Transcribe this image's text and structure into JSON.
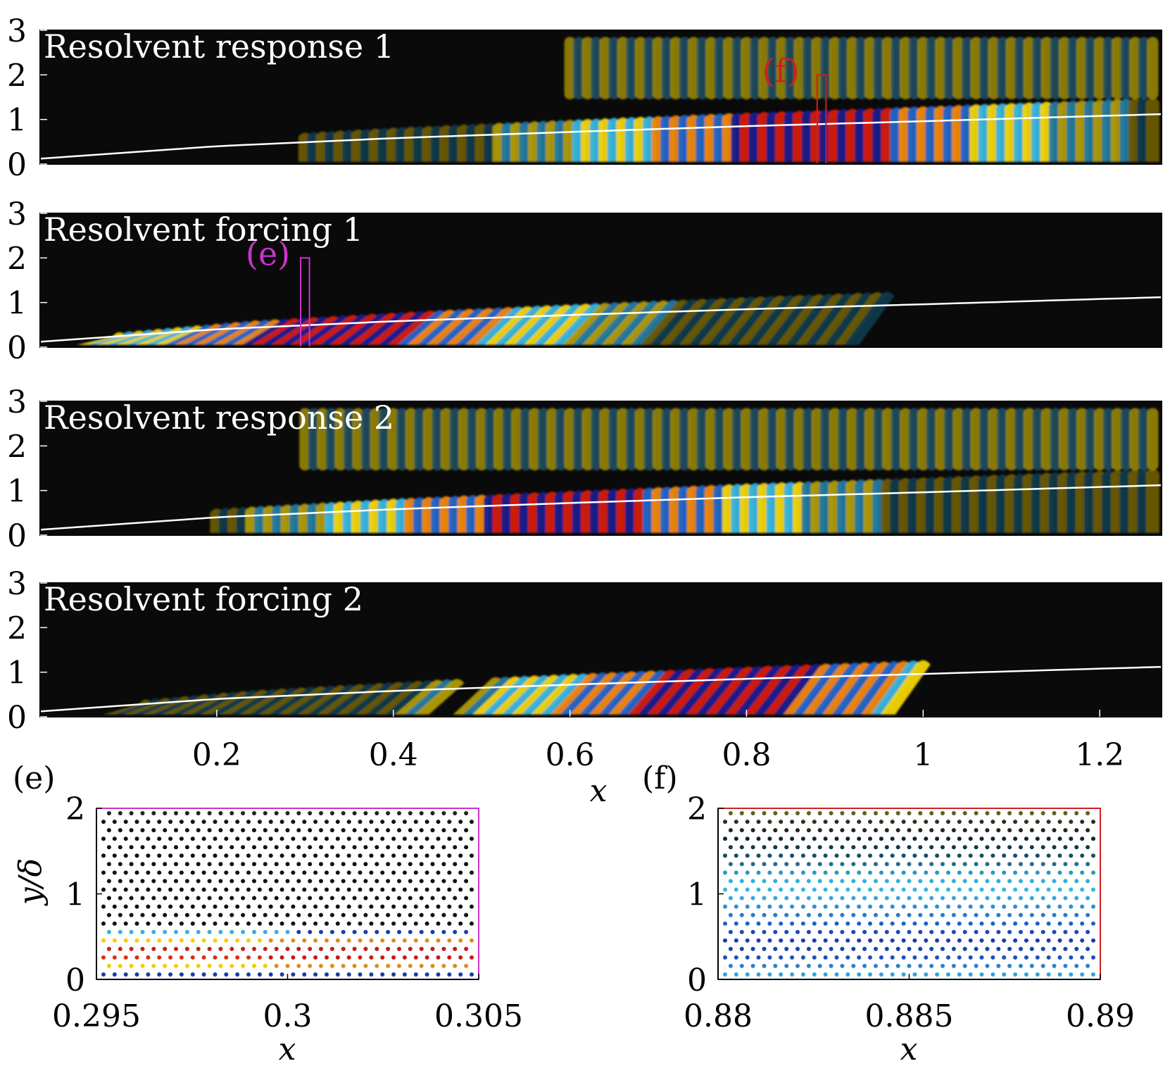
{
  "figure": {
    "colors": {
      "background_panel": "#0a0a0a",
      "wavemap": [
        "#c8a400",
        "#f2d400",
        "#f08800",
        "#d42000",
        "#33b4e0",
        "#1a66c8",
        "#14208c"
      ],
      "bl_curve": "#ffffff",
      "box_e": "#cc33cc",
      "box_f": "#d02020"
    },
    "icons": {
      "wave_field": "contour-field-icon"
    }
  },
  "chart_data": [
    {
      "type": "heatmap",
      "id": "response1",
      "title": "Resolvent response 1",
      "ylim": [
        0,
        3.0
      ],
      "yticks": [
        "0",
        "1",
        "2",
        "3"
      ],
      "xlim": [
        0.0,
        1.27
      ],
      "bl_thickness": {
        "x": [
          0.0,
          0.2,
          0.4,
          0.6,
          0.8,
          1.0,
          1.27
        ],
        "y": [
          0.12,
          0.4,
          0.58,
          0.72,
          0.85,
          0.96,
          1.12
        ]
      },
      "wave": {
        "x_start": 0.3,
        "x_end": 1.27,
        "peak_x": 0.88,
        "wavelength": 0.02,
        "tilt": 0.0,
        "upper_band": true,
        "upper_start": 0.6
      },
      "box": {
        "label": "(f)",
        "x": [
          0.88,
          0.89
        ],
        "y": [
          0,
          2.0
        ]
      }
    },
    {
      "type": "heatmap",
      "id": "forcing1",
      "title": "Resolvent forcing 1",
      "ylim": [
        0,
        3.0
      ],
      "yticks": [
        "0",
        "1",
        "2",
        "3"
      ],
      "xlim": [
        0.0,
        1.27
      ],
      "bl_thickness": {
        "x": [
          0.0,
          0.2,
          0.4,
          0.6,
          0.8,
          1.0,
          1.27
        ],
        "y": [
          0.12,
          0.4,
          0.58,
          0.72,
          0.85,
          0.96,
          1.12
        ]
      },
      "wave": {
        "x_start": 0.05,
        "x_end": 0.93,
        "peak_x": 0.32,
        "wavelength": 0.022,
        "tilt": 0.04,
        "upper_band": false
      },
      "box": {
        "label": "(e)",
        "x": [
          0.295,
          0.305
        ],
        "y": [
          0,
          2.0
        ]
      }
    },
    {
      "type": "heatmap",
      "id": "response2",
      "title": "Resolvent response 2",
      "ylim": [
        0,
        3.0
      ],
      "yticks": [
        "0",
        "1",
        "2",
        "3"
      ],
      "xlim": [
        0.0,
        1.27
      ],
      "bl_thickness": {
        "x": [
          0.0,
          0.2,
          0.4,
          0.6,
          0.8,
          1.0,
          1.27
        ],
        "y": [
          0.12,
          0.4,
          0.58,
          0.72,
          0.85,
          0.96,
          1.12
        ]
      },
      "wave": {
        "x_start": 0.2,
        "x_end": 1.27,
        "peak_x": 0.6,
        "wavelength": 0.02,
        "tilt": 0.0,
        "upper_band": true,
        "upper_start": 0.3
      }
    },
    {
      "type": "heatmap",
      "id": "forcing2",
      "title": "Resolvent forcing 2",
      "ylim": [
        0,
        3.0
      ],
      "yticks": [
        "0",
        "1",
        "2",
        "3"
      ],
      "xlim": [
        0.0,
        1.27
      ],
      "xlabel": "x",
      "xticks": [
        "0.2",
        "0.4",
        "0.6",
        "0.8",
        "1",
        "1.2"
      ],
      "xtick_values": [
        0.2,
        0.4,
        0.6,
        0.8,
        1.0,
        1.2
      ],
      "bl_thickness": {
        "x": [
          0.0,
          0.2,
          0.4,
          0.6,
          0.8,
          1.0,
          1.27
        ],
        "y": [
          0.12,
          0.4,
          0.58,
          0.72,
          0.85,
          0.96,
          1.12
        ]
      },
      "wave": {
        "x_start": 0.08,
        "x_end": 0.97,
        "peak_x": 0.76,
        "wavelength": 0.022,
        "tilt": 0.04,
        "upper_band": false,
        "gap": [
          0.44,
          0.47
        ]
      }
    },
    {
      "type": "scatter",
      "id": "zoom_e",
      "panel_label": "(e)",
      "xlabel": "x",
      "ylabel": "y/δ",
      "xlim": [
        0.295,
        0.305
      ],
      "ylim": [
        0,
        2
      ],
      "xticks": [
        "0.295",
        "0.3",
        "0.305"
      ],
      "xtick_values": [
        0.295,
        0.3,
        0.305
      ],
      "yticks": [
        "0",
        "1",
        "2"
      ],
      "ytick_values": [
        0,
        1,
        2
      ],
      "rows": 20,
      "cols": 34,
      "row_colors": [
        "#1a3ca8",
        "#f0d000",
        "#d83010",
        "#c82010",
        "#f2d000",
        "#34b0d8",
        "#111111",
        "#111111",
        "#111111",
        "#111111",
        "#111111",
        "#111111",
        "#111111",
        "#111111",
        "#111111",
        "#111111",
        "#111111",
        "#111111",
        "#111111",
        "#222222"
      ]
    },
    {
      "type": "scatter",
      "id": "zoom_f",
      "panel_label": "(f)",
      "xlabel": "x",
      "ylabel": "",
      "xlim": [
        0.88,
        0.89
      ],
      "ylim": [
        0,
        2
      ],
      "xticks": [
        "0.88",
        "0.885",
        "0.89"
      ],
      "xtick_values": [
        0.88,
        0.885,
        0.89
      ],
      "yticks": [
        "0",
        "1",
        "2"
      ],
      "ytick_values": [
        0,
        1,
        2
      ],
      "rows": 20,
      "cols": 34,
      "row_colors": [
        "#2ca8d8",
        "#2a80d0",
        "#1c50c0",
        "#1a40b8",
        "#1a3cb0",
        "#1c48b8",
        "#2060c0",
        "#2a7ac8",
        "#3090d0",
        "#34a8d8",
        "#36b8e0",
        "#30b0d8",
        "#249ac0",
        "#1c7090",
        "#145064",
        "#103a44",
        "#0c2a30",
        "#1a2a20",
        "#303020",
        "#606020"
      ]
    }
  ]
}
